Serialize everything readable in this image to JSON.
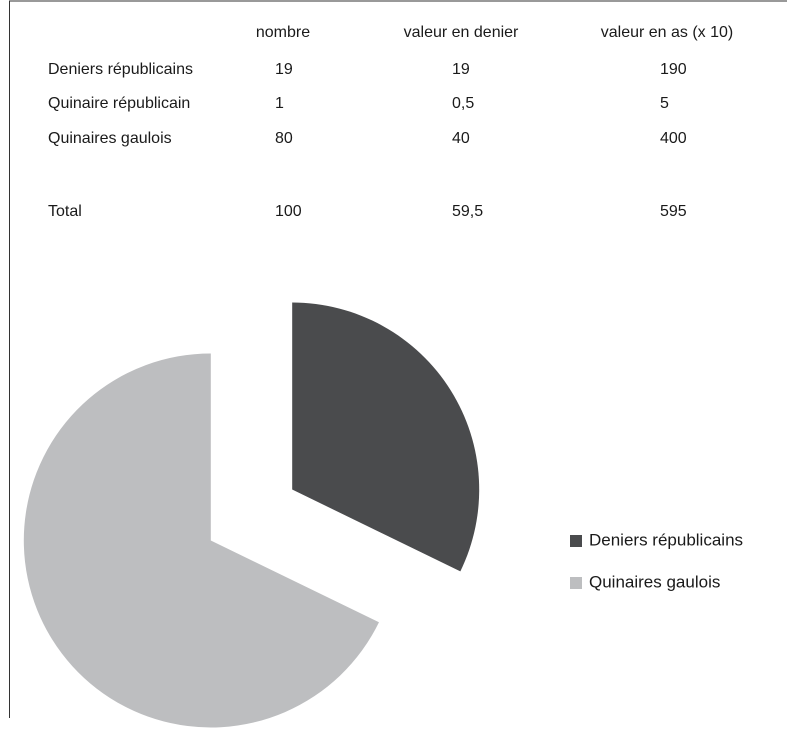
{
  "table": {
    "columns": [
      "nombre",
      "valeur en denier",
      "valeur en as (x 10)"
    ],
    "rows": [
      [
        "Deniers républicains",
        "19",
        "19",
        "190"
      ],
      [
        "Quinaire républicain",
        "1",
        "0,5",
        "5"
      ],
      [
        "Quinaires gaulois",
        "80",
        "40",
        "400"
      ]
    ],
    "total": [
      "Total",
      "100",
      "59,5",
      "595"
    ]
  },
  "chart_data": {
    "type": "pie",
    "categories": [
      "Deniers républicains",
      "Quinaires gaulois"
    ],
    "values": [
      19,
      40
    ],
    "colors": [
      "#4a4b4d",
      "#bdbec0"
    ],
    "exploded": true,
    "legend": "right"
  }
}
